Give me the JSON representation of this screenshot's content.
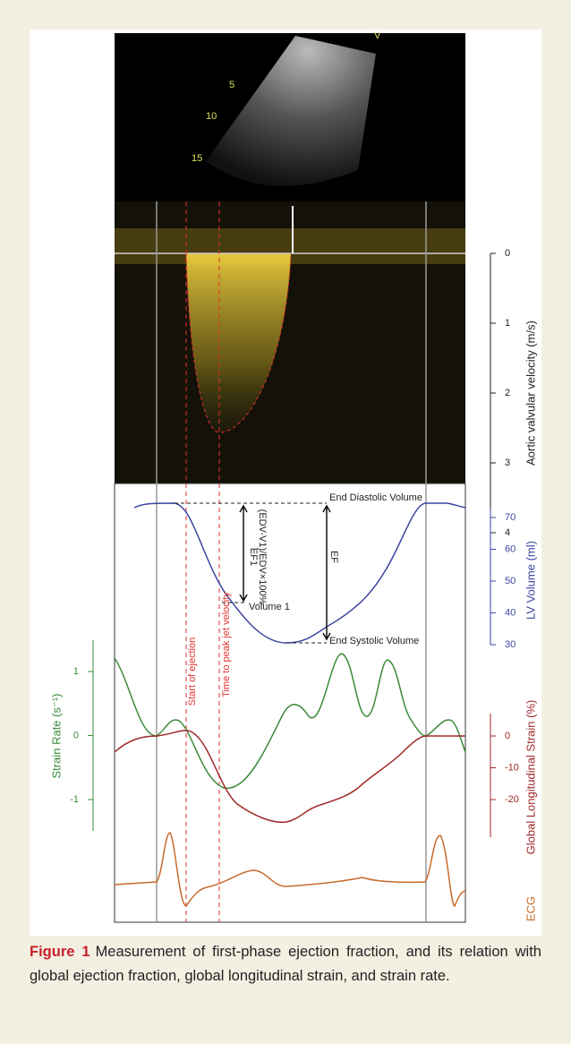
{
  "figure": {
    "echo_labels": [
      "V",
      "5",
      "10",
      "15"
    ],
    "velocity_axis": {
      "label": "Aortic valvular velocity (m/s)",
      "ticks": [
        0,
        1,
        2,
        3,
        4
      ]
    },
    "volume_axis": {
      "label": "LV Volume (ml)",
      "ticks": [
        70,
        60,
        50,
        40,
        30
      ]
    },
    "strain_rate_axis": {
      "label": "Strain Rate (s⁻¹)",
      "ticks": [
        1,
        0,
        -1
      ]
    },
    "strain_axis": {
      "label": "Global Longitudinal Strain (%)",
      "ticks": [
        0,
        -10,
        -20
      ]
    },
    "ecg_label": "ECG",
    "annotations": {
      "edv": "End Diastolic Volume",
      "volume1": "Volume 1",
      "ef1": "EF1",
      "ef1_formula": "(EDV-V1)/EDV×100%",
      "ef": "EF",
      "esv": "End Systolic Volume",
      "start": "Start of ejection",
      "peak": "Time to peak jet velocity"
    }
  },
  "caption": {
    "label": "Figure 1",
    "text": "Measurement of first-phase ejection fraction, and its relation with global ejection fraction, global longitudinal strain, and strain rate."
  }
}
